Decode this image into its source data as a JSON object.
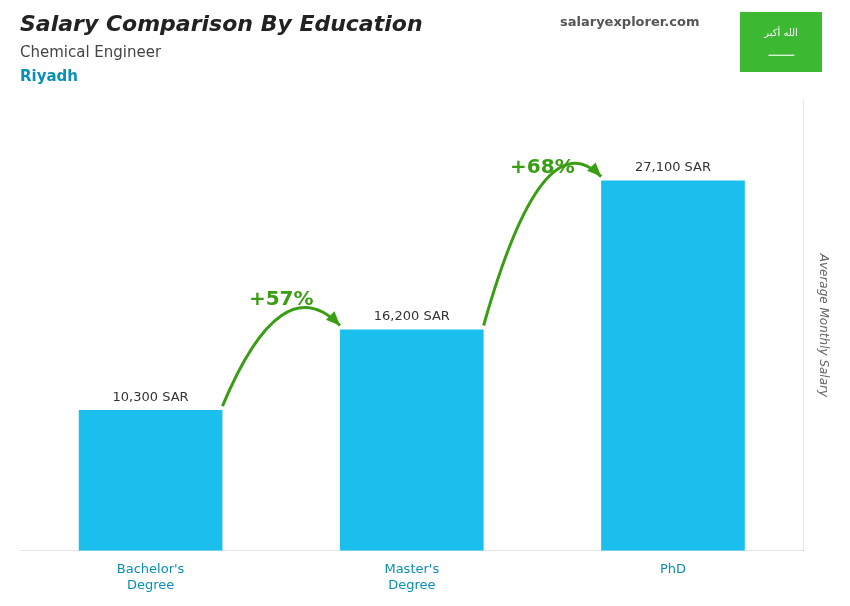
{
  "chart_data": {
    "type": "bar",
    "title": "Salary Comparison By Education",
    "subtitle": "Chemical Engineer",
    "y_label": "Average Monthly Salary",
    "annotations": [
      "Riyadh",
      "+57%",
      "+68%",
      "salaryexplorer.com",
      "الله أكبر",
      "⸺"
    ],
    "categories": [
      "Bachelor's\nDegree",
      "Master's\nDegree",
      "PhD"
    ],
    "values": [
      10300,
      16200,
      27100
    ],
    "value_labels": [
      "10,300 SAR",
      "16,200 SAR",
      "27,100 SAR"
    ],
    "color": "#1ABFED",
    "ylim": [
      0,
      33000
    ],
    "grid": false,
    "data_labels": true,
    "tick_labels": "x"
  }
}
